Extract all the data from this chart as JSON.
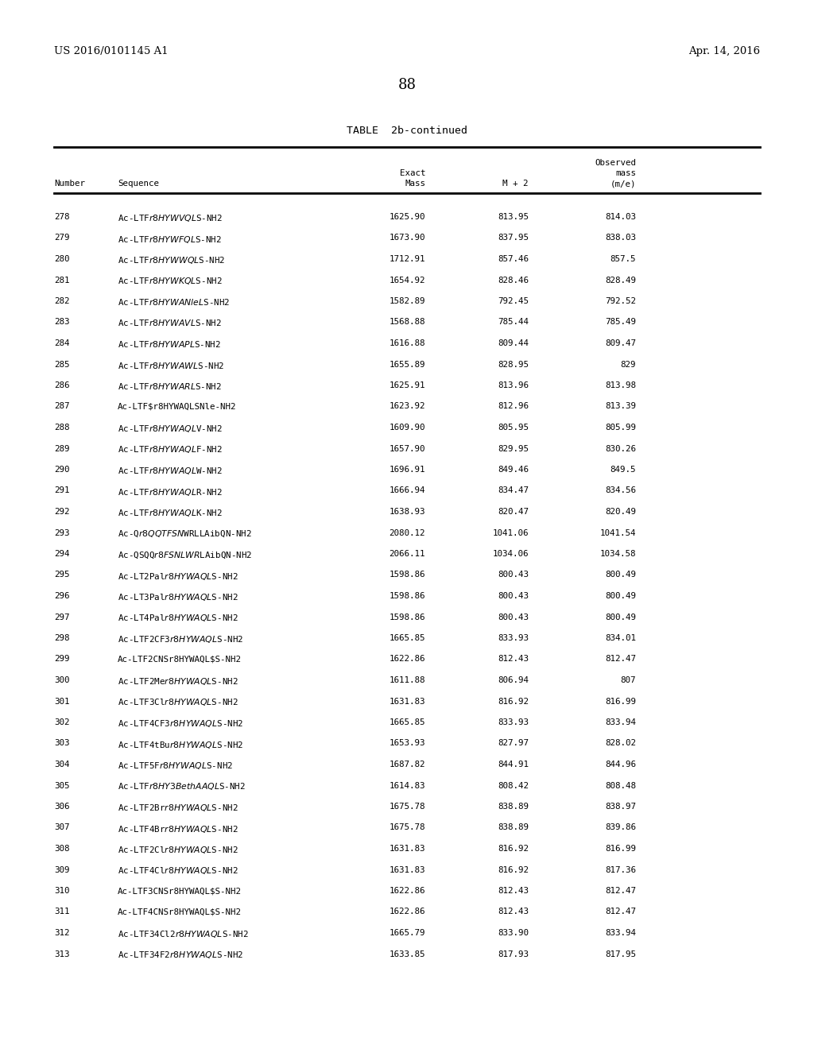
{
  "page_left": "US 2016/0101145 A1",
  "page_right": "Apr. 14, 2016",
  "page_number": "88",
  "table_title": "TABLE  2b-continued",
  "rows": [
    [
      "278",
      "Ac-LTF$r8HYWVQL$S-NH2",
      "1625.90",
      "813.95",
      "814.03"
    ],
    [
      "279",
      "Ac-LTF$r8HYWFQL$S-NH2",
      "1673.90",
      "837.95",
      "838.03"
    ],
    [
      "280",
      "Ac-LTF$r8HYWWQL$S-NH2",
      "1712.91",
      "857.46",
      "857.5"
    ],
    [
      "281",
      "Ac-LTF$r8HYWKQL$S-NH2",
      "1654.92",
      "828.46",
      "828.49"
    ],
    [
      "282",
      "Ac-LTF$r8HYWANleL$S-NH2",
      "1582.89",
      "792.45",
      "792.52"
    ],
    [
      "283",
      "Ac-LTF$r8HYWAVL$S-NH2",
      "1568.88",
      "785.44",
      "785.49"
    ],
    [
      "284",
      "Ac-LTF$r8HYWAPL$S-NH2",
      "1616.88",
      "809.44",
      "809.47"
    ],
    [
      "285",
      "Ac-LTF$r8HYWAWL$S-NH2",
      "1655.89",
      "828.95",
      "829"
    ],
    [
      "286",
      "Ac-LTF$r8HYWARL$S-NH2",
      "1625.91",
      "813.96",
      "813.98"
    ],
    [
      "287",
      "Ac-LTF$r8HYWAQLSNle-NH2",
      "1623.92",
      "812.96",
      "813.39"
    ],
    [
      "288",
      "Ac-LTF$r8HYWAQL$V-NH2",
      "1609.90",
      "805.95",
      "805.99"
    ],
    [
      "289",
      "Ac-LTF$r8HYWAQL$F-NH2",
      "1657.90",
      "829.95",
      "830.26"
    ],
    [
      "290",
      "Ac-LTF$r8HYWAQL$W-NH2",
      "1696.91",
      "849.46",
      "849.5"
    ],
    [
      "291",
      "Ac-LTF$r8HYWAQL$R-NH2",
      "1666.94",
      "834.47",
      "834.56"
    ],
    [
      "292",
      "Ac-LTF$r8HYWAQL$K-NH2",
      "1638.93",
      "820.47",
      "820.49"
    ],
    [
      "293",
      "Ac-Q$r8QQTFSN$WRLLAibQN-NH2",
      "2080.12",
      "1041.06",
      "1041.54"
    ],
    [
      "294",
      "Ac-QSQQ$r8FSNLWR$LAibQN-NH2",
      "2066.11",
      "1034.06",
      "1034.58"
    ],
    [
      "295",
      "Ac-LT2Pal$r8HYWAQL$S-NH2",
      "1598.86",
      "800.43",
      "800.49"
    ],
    [
      "296",
      "Ac-LT3Pal$r8HYWAQL$S-NH2",
      "1598.86",
      "800.43",
      "800.49"
    ],
    [
      "297",
      "Ac-LT4Pal$r8HYWAQL$S-NH2",
      "1598.86",
      "800.43",
      "800.49"
    ],
    [
      "298",
      "Ac-LTF2CF3$r8HYWAQL$S-NH2",
      "1665.85",
      "833.93",
      "834.01"
    ],
    [
      "299",
      "Ac-LTF2CNSr8HYWAQL$S-NH2",
      "1622.86",
      "812.43",
      "812.47"
    ],
    [
      "300",
      "Ac-LTF2Me$r8HYWAQL$S-NH2",
      "1611.88",
      "806.94",
      "807"
    ],
    [
      "301",
      "Ac-LTF3Cl$r8HYWAQL$S-NH2",
      "1631.83",
      "816.92",
      "816.99"
    ],
    [
      "302",
      "Ac-LTF4CF3$r8HYWAQL$S-NH2",
      "1665.85",
      "833.93",
      "833.94"
    ],
    [
      "303",
      "Ac-LTF4tBu$r8HYWAQL$S-NH2",
      "1653.93",
      "827.97",
      "828.02"
    ],
    [
      "304",
      "Ac-LTF5F$r8HYWAQL$S-NH2",
      "1687.82",
      "844.91",
      "844.96"
    ],
    [
      "305",
      "Ac-LTF$r8HY3BethAAQL$S-NH2",
      "1614.83",
      "808.42",
      "808.48"
    ],
    [
      "306",
      "Ac-LTF2Br$r8HYWAQL$S-NH2",
      "1675.78",
      "838.89",
      "838.97"
    ],
    [
      "307",
      "Ac-LTF4Br$r8HYWAQL$S-NH2",
      "1675.78",
      "838.89",
      "839.86"
    ],
    [
      "308",
      "Ac-LTF2Cl$r8HYWAQL$S-NH2",
      "1631.83",
      "816.92",
      "816.99"
    ],
    [
      "309",
      "Ac-LTF4Cl$r8HYWAQL$S-NH2",
      "1631.83",
      "816.92",
      "817.36"
    ],
    [
      "310",
      "Ac-LTF3CNSr8HYWAQL$S-NH2",
      "1622.86",
      "812.43",
      "812.47"
    ],
    [
      "311",
      "Ac-LTF4CNSr8HYWAQL$S-NH2",
      "1622.86",
      "812.43",
      "812.47"
    ],
    [
      "312",
      "Ac-LTF34Cl2$r8HYWAQL$S-NH2",
      "1665.79",
      "833.90",
      "833.94"
    ],
    [
      "313",
      "Ac-LTF34F2$r8HYWAQL$S-NH2",
      "1633.85",
      "817.93",
      "817.95"
    ]
  ],
  "background_color": "#ffffff",
  "text_color": "#000000",
  "font_size": 7.8,
  "header_font_size": 7.8,
  "title_font_size": 9.5,
  "page_font_size": 9.5
}
